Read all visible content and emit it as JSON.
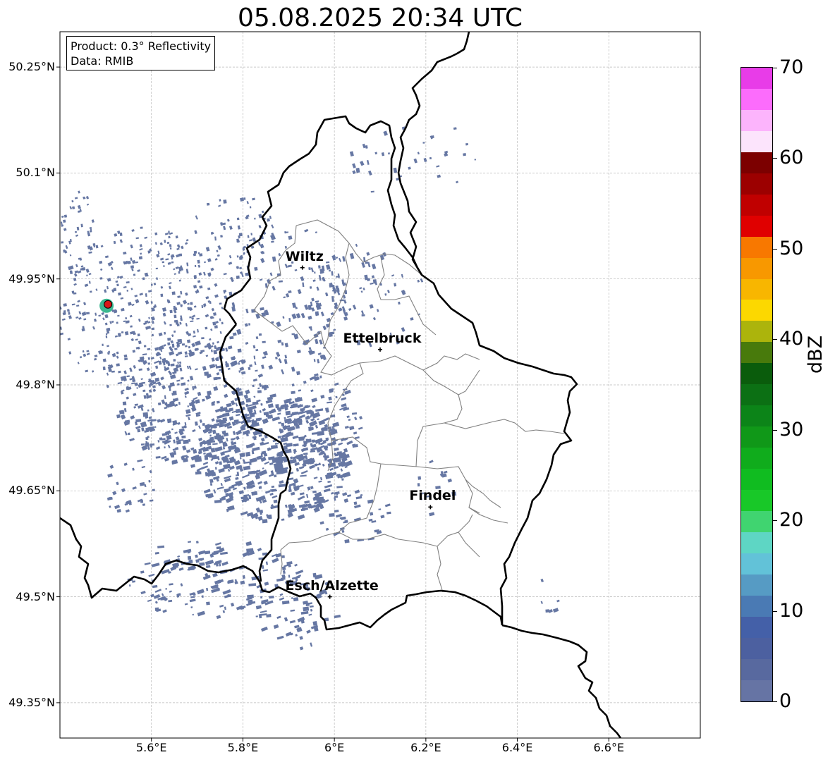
{
  "title": "05.08.2025 20:34 UTC",
  "info": {
    "product": "Product: 0.3° Reflectivity",
    "data_source": "Data: RMIB"
  },
  "axes": {
    "x_ticks": [
      "5.6°E",
      "5.8°E",
      "6°E",
      "6.2°E",
      "6.4°E",
      "6.6°E"
    ],
    "y_ticks": [
      "50.25°N",
      "50.1°N",
      "49.95°N",
      "49.8°N",
      "49.65°N",
      "49.5°N",
      "49.35°N"
    ],
    "x_range": [
      5.4,
      6.8
    ],
    "y_range": [
      49.3,
      50.3
    ]
  },
  "cities": [
    {
      "name": "Wiltz",
      "lon": 5.93,
      "lat": 49.966
    },
    {
      "name": "Ettelbruck",
      "lon": 6.1,
      "lat": 49.85
    },
    {
      "name": "Findel",
      "lon": 6.21,
      "lat": 49.627
    },
    {
      "name": "Esch/Alzette",
      "lon": 5.99,
      "lat": 49.5
    }
  ],
  "radar_site": {
    "lon": 5.505,
    "lat": 49.914
  },
  "colorbar": {
    "label": "dBZ",
    "ticks": [
      "0",
      "10",
      "20",
      "30",
      "40",
      "50",
      "60",
      "70"
    ],
    "range": [
      0,
      70
    ],
    "colors": [
      "#6674a4",
      "#58699f",
      "#4c60a0",
      "#4460a8",
      "#4a7ab4",
      "#569bc4",
      "#62c2d8",
      "#5ed6c4",
      "#40d470",
      "#18c828",
      "#10bc20",
      "#10ac1c",
      "#109818",
      "#0c8418",
      "#0c7014",
      "#0a5c0c",
      "#487a0c",
      "#acb40c",
      "#fcd800",
      "#f8b600",
      "#f89800",
      "#f87800",
      "#e00000",
      "#c00000",
      "#9c0000",
      "#7c0000",
      "#fce4fc",
      "#fcb4fc",
      "#fc6cfc",
      "#e83ce8"
    ]
  },
  "palette": {
    "precip": "#6677a3",
    "border": "#000000",
    "district": "#808080",
    "radar_dot": "#d81818",
    "radar_ring": "#3cb890"
  }
}
